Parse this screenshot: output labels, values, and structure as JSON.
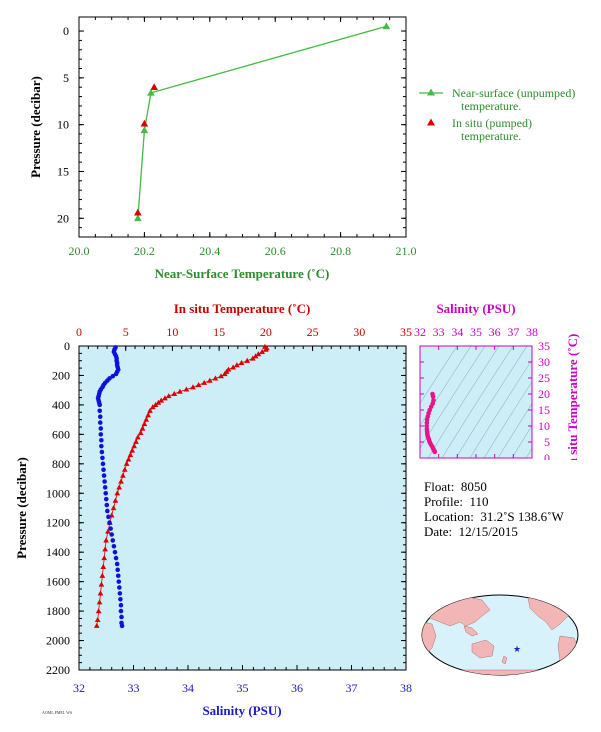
{
  "chart_data": [
    {
      "id": "near_surface",
      "type": "line",
      "xlabel": "Near-Surface Temperature (˚C)",
      "ylabel": "Pressure (decibar)",
      "xlim": [
        20.0,
        21.0
      ],
      "ylim": [
        22,
        -1.5
      ],
      "xticks": [
        20.0,
        20.2,
        20.4,
        20.6,
        20.8,
        21.0
      ],
      "xtick_labels": [
        "20.0",
        "20.2",
        "20.4",
        "20.6",
        "20.8",
        "21.0"
      ],
      "yticks": [
        0,
        5,
        10,
        15,
        20
      ],
      "ytick_labels": [
        "0",
        "5",
        "10",
        "15",
        "20"
      ],
      "series": [
        {
          "name": "Near-surface (unpumped) temperature.",
          "color": "#44bb44",
          "marker": "triangle",
          "line": true,
          "points": [
            [
              20.94,
              -0.5
            ],
            [
              20.22,
              6.6
            ],
            [
              20.2,
              10.6
            ],
            [
              20.18,
              20.0
            ]
          ]
        },
        {
          "name": "In situ (pumped) temperature.",
          "color": "#dd0000",
          "marker": "triangle",
          "line": false,
          "points": [
            [
              20.23,
              6.0
            ],
            [
              20.2,
              9.9
            ],
            [
              20.18,
              19.4
            ]
          ]
        }
      ],
      "legend": "right",
      "legend_lines": [
        [
          "Near-surface (unpumped)",
          "temperature."
        ],
        [
          "In situ (pumped)",
          "temperature."
        ]
      ]
    },
    {
      "id": "profile",
      "type": "scatter",
      "ylabel": "Pressure (decibar)",
      "top_xlabel": "In situ Temperature (˚C)",
      "bottom_xlabel": "Salinity (PSU)",
      "ylim": [
        2200,
        0
      ],
      "top_xlim": [
        0,
        35
      ],
      "bottom_xlim": [
        32,
        38
      ],
      "yticks": [
        0,
        200,
        400,
        600,
        800,
        1000,
        1200,
        1400,
        1600,
        1800,
        2000,
        2200
      ],
      "ytick_labels": [
        "0",
        "200",
        "400",
        "600",
        "800",
        "1000",
        "1200",
        "1400",
        "1600",
        "1800",
        "2000",
        "2200"
      ],
      "top_ticks": [
        0,
        5,
        10,
        15,
        20,
        25,
        30,
        35
      ],
      "top_tick_labels": [
        "0",
        "5",
        "10",
        "15",
        "20",
        "25",
        "30",
        "35"
      ],
      "bottom_ticks": [
        32,
        33,
        34,
        35,
        36,
        37,
        38
      ],
      "bottom_tick_labels": [
        "32",
        "33",
        "34",
        "35",
        "36",
        "37",
        "38"
      ],
      "background": "#cdeef7",
      "temperature": {
        "color": "#dd0000",
        "marker": "triangle",
        "points": [
          [
            19.9,
            5
          ],
          [
            20.1,
            15
          ],
          [
            20.0,
            25
          ],
          [
            19.6,
            40
          ],
          [
            19.2,
            55
          ],
          [
            18.9,
            70
          ],
          [
            18.6,
            85
          ],
          [
            18.0,
            100
          ],
          [
            17.4,
            115
          ],
          [
            16.9,
            130
          ],
          [
            16.5,
            145
          ],
          [
            16.0,
            160
          ],
          [
            15.8,
            175
          ],
          [
            15.6,
            190
          ],
          [
            15.2,
            205
          ],
          [
            14.6,
            220
          ],
          [
            14.0,
            235
          ],
          [
            13.4,
            250
          ],
          [
            12.8,
            265
          ],
          [
            12.2,
            280
          ],
          [
            11.5,
            295
          ],
          [
            10.8,
            310
          ],
          [
            10.2,
            325
          ],
          [
            9.6,
            340
          ],
          [
            9.2,
            355
          ],
          [
            8.8,
            370
          ],
          [
            8.5,
            385
          ],
          [
            8.2,
            400
          ],
          [
            7.9,
            415
          ],
          [
            7.6,
            440
          ],
          [
            7.4,
            470
          ],
          [
            7.2,
            500
          ],
          [
            7.0,
            530
          ],
          [
            6.8,
            560
          ],
          [
            6.6,
            590
          ],
          [
            6.3,
            620
          ],
          [
            6.1,
            650
          ],
          [
            5.9,
            680
          ],
          [
            5.7,
            710
          ],
          [
            5.5,
            740
          ],
          [
            5.3,
            770
          ],
          [
            5.1,
            800
          ],
          [
            4.9,
            840
          ],
          [
            4.7,
            880
          ],
          [
            4.5,
            920
          ],
          [
            4.3,
            960
          ],
          [
            4.1,
            1000
          ],
          [
            3.9,
            1050
          ],
          [
            3.7,
            1100
          ],
          [
            3.5,
            1150
          ],
          [
            3.3,
            1200
          ],
          [
            3.1,
            1260
          ],
          [
            2.9,
            1320
          ],
          [
            2.8,
            1380
          ],
          [
            2.7,
            1440
          ],
          [
            2.6,
            1500
          ],
          [
            2.5,
            1560
          ],
          [
            2.4,
            1620
          ],
          [
            2.3,
            1680
          ],
          [
            2.2,
            1740
          ],
          [
            2.1,
            1800
          ],
          [
            2.0,
            1860
          ],
          [
            1.9,
            1900
          ]
        ]
      },
      "salinity": {
        "color": "#1010dd",
        "marker": "circle",
        "points": [
          [
            32.67,
            10
          ],
          [
            32.65,
            25
          ],
          [
            32.64,
            40
          ],
          [
            32.66,
            55
          ],
          [
            32.68,
            70
          ],
          [
            32.69,
            85
          ],
          [
            32.69,
            100
          ],
          [
            32.7,
            115
          ],
          [
            32.7,
            130
          ],
          [
            32.71,
            145
          ],
          [
            32.72,
            160
          ],
          [
            32.7,
            175
          ],
          [
            32.68,
            190
          ],
          [
            32.62,
            205
          ],
          [
            32.56,
            220
          ],
          [
            32.52,
            235
          ],
          [
            32.48,
            250
          ],
          [
            32.45,
            265
          ],
          [
            32.43,
            280
          ],
          [
            32.4,
            295
          ],
          [
            32.38,
            310
          ],
          [
            32.37,
            325
          ],
          [
            32.36,
            340
          ],
          [
            32.35,
            355
          ],
          [
            32.36,
            370
          ],
          [
            32.37,
            385
          ],
          [
            32.38,
            400
          ],
          [
            32.38,
            440
          ],
          [
            32.39,
            480
          ],
          [
            32.39,
            520
          ],
          [
            32.4,
            560
          ],
          [
            32.4,
            600
          ],
          [
            32.41,
            640
          ],
          [
            32.41,
            680
          ],
          [
            32.42,
            720
          ],
          [
            32.43,
            760
          ],
          [
            32.44,
            800
          ],
          [
            32.45,
            840
          ],
          [
            32.46,
            880
          ],
          [
            32.47,
            920
          ],
          [
            32.48,
            960
          ],
          [
            32.49,
            1000
          ],
          [
            32.5,
            1040
          ],
          [
            32.51,
            1080
          ],
          [
            32.52,
            1120
          ],
          [
            32.54,
            1160
          ],
          [
            32.56,
            1200
          ],
          [
            32.58,
            1240
          ],
          [
            32.6,
            1280
          ],
          [
            32.62,
            1320
          ],
          [
            32.64,
            1360
          ],
          [
            32.66,
            1400
          ],
          [
            32.68,
            1440
          ],
          [
            32.7,
            1480
          ],
          [
            32.71,
            1520
          ],
          [
            32.72,
            1560
          ],
          [
            32.73,
            1600
          ],
          [
            32.74,
            1640
          ],
          [
            32.75,
            1680
          ],
          [
            32.76,
            1720
          ],
          [
            32.77,
            1760
          ],
          [
            32.77,
            1800
          ],
          [
            32.78,
            1840
          ],
          [
            32.78,
            1880
          ],
          [
            32.79,
            1900
          ]
        ]
      }
    },
    {
      "id": "ts_diagram",
      "type": "scatter",
      "top_xlabel": "Salinity (PSU)",
      "right_ylabel": "In situ Temperature (˚C)",
      "xlim": [
        32,
        38
      ],
      "ylim": [
        0,
        35
      ],
      "xticks": [
        32,
        33,
        34,
        35,
        36,
        37,
        38
      ],
      "xtick_labels": [
        "32",
        "33",
        "34",
        "35",
        "36",
        "37",
        "38"
      ],
      "yticks": [
        0,
        5,
        10,
        15,
        20,
        25,
        30,
        35
      ],
      "ytick_labels": [
        "0",
        "5",
        "10",
        "15",
        "20",
        "25",
        "30",
        "35"
      ],
      "color": "#ee1188",
      "points": [
        [
          32.67,
          20.0
        ],
        [
          32.7,
          19.2
        ],
        [
          32.72,
          18.0
        ],
        [
          32.68,
          17.0
        ],
        [
          32.6,
          16.0
        ],
        [
          32.52,
          15.0
        ],
        [
          32.46,
          14.0
        ],
        [
          32.42,
          13.0
        ],
        [
          32.38,
          12.0
        ],
        [
          32.37,
          11.0
        ],
        [
          32.36,
          10.0
        ],
        [
          32.37,
          9.0
        ],
        [
          32.38,
          8.2
        ],
        [
          32.39,
          7.5
        ],
        [
          32.41,
          7.0
        ],
        [
          32.43,
          6.5
        ],
        [
          32.46,
          6.0
        ],
        [
          32.49,
          5.5
        ],
        [
          32.52,
          5.0
        ],
        [
          32.56,
          4.5
        ],
        [
          32.61,
          4.0
        ],
        [
          32.66,
          3.5
        ],
        [
          32.7,
          3.0
        ],
        [
          32.73,
          2.6
        ],
        [
          32.76,
          2.3
        ],
        [
          32.78,
          2.1
        ],
        [
          32.79,
          1.9
        ]
      ]
    }
  ],
  "info": {
    "float_label": "Float:",
    "float_value": "8050",
    "profile_label": "Profile:",
    "profile_value": "110",
    "location_label": "Location:",
    "location_value": "31.2˚S  138.6˚W",
    "date_label": "Date:",
    "date_value": "12/15/2015"
  },
  "map": {
    "land_color": "#f2b6b6",
    "ocean_color": "#d7f2fb",
    "marker_color": "#2222cc",
    "marker_lon": -138.6,
    "marker_lat": -31.2
  },
  "footer_stamp": "AOML PMEL WS"
}
